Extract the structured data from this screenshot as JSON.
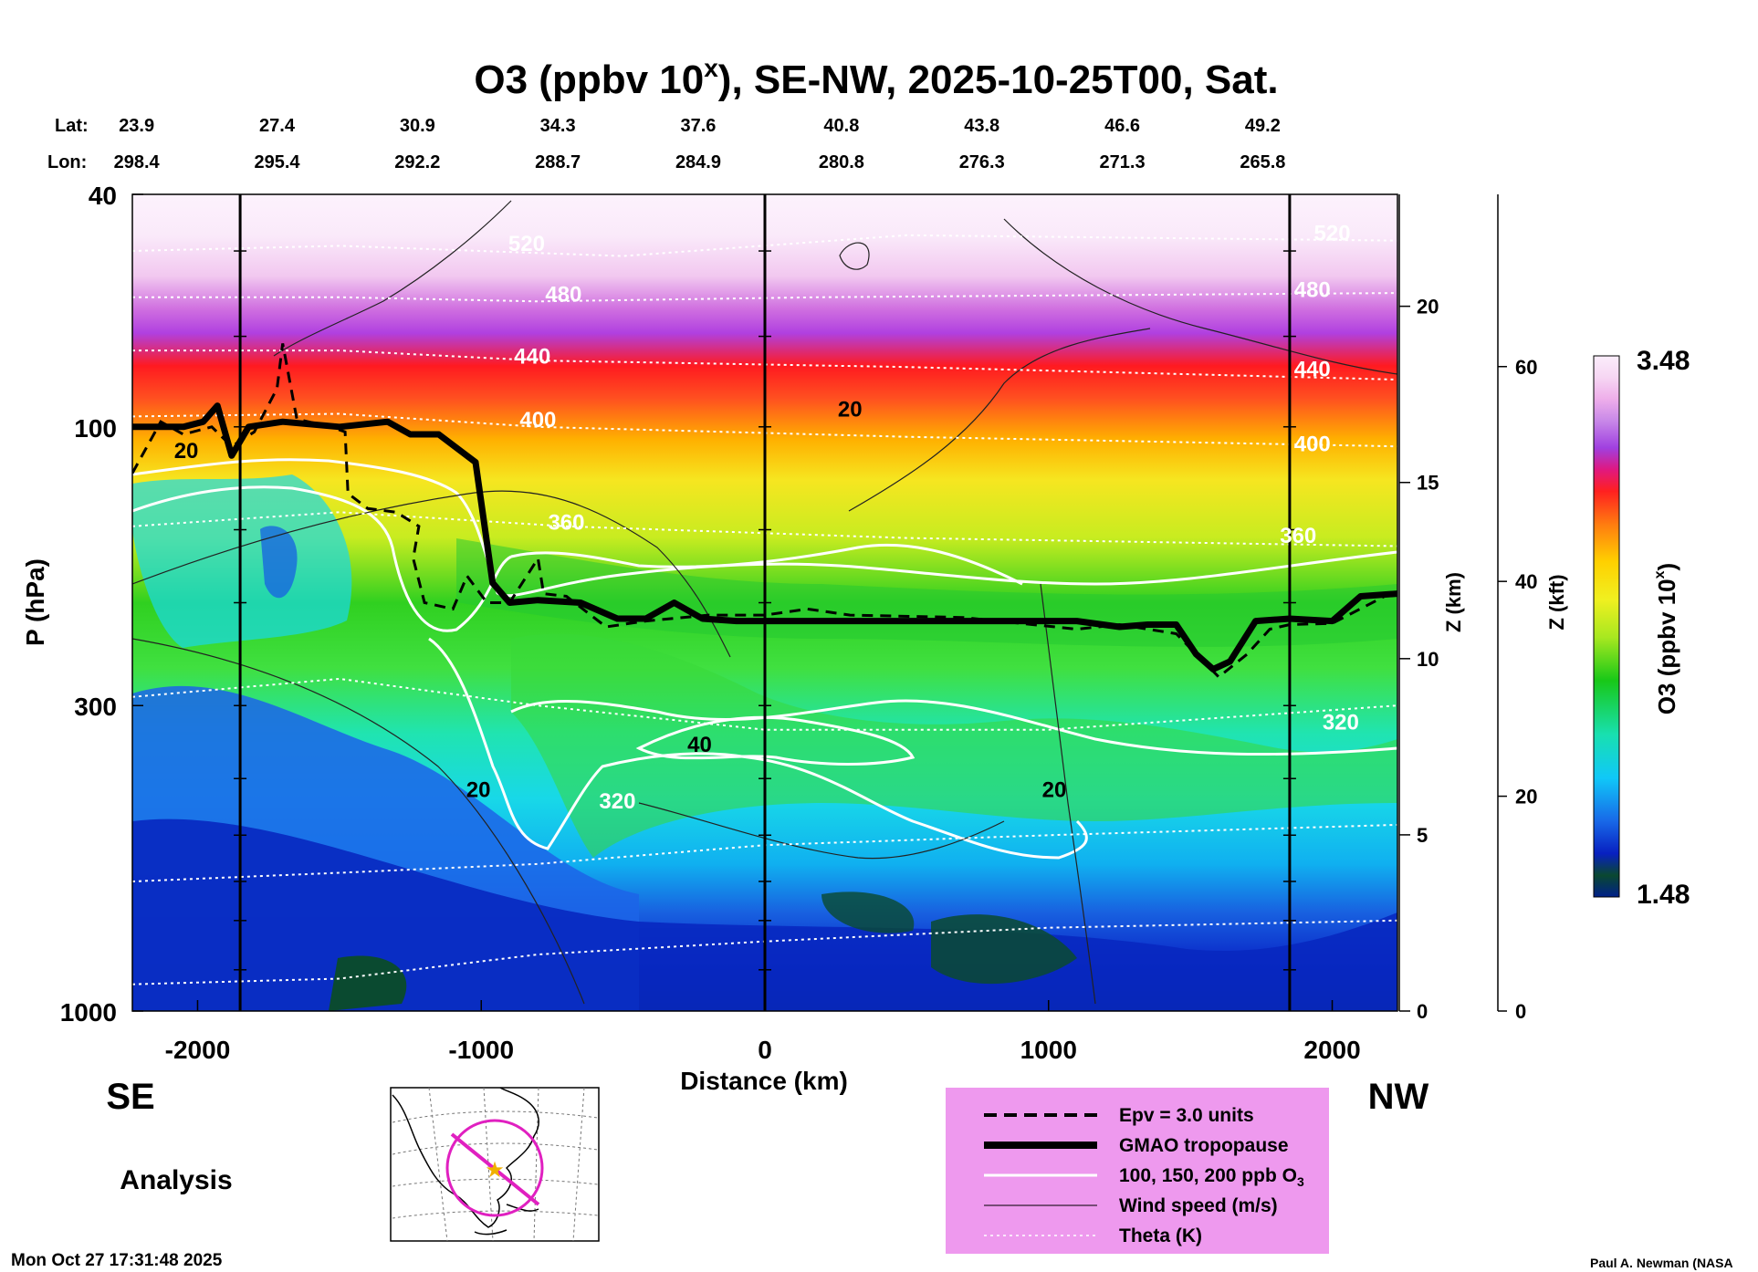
{
  "chart_data": {
    "type": "heatmap",
    "title_main": "O3 (ppbv 10",
    "title_sup": "x",
    "title_rest": "), SE-NW, 2025-10-25T00, Sat.",
    "lat_label": "Lat:",
    "lon_label": "Lon:",
    "latitudes": [
      "23.9",
      "27.4",
      "30.9",
      "34.3",
      "37.6",
      "40.8",
      "43.8",
      "46.6",
      "49.2"
    ],
    "longitudes": [
      "298.4",
      "295.4",
      "292.2",
      "288.7",
      "284.9",
      "280.8",
      "276.3",
      "271.3",
      "265.8"
    ],
    "station_positions_km": [
      -2215,
      -1720,
      -1225,
      -730,
      -235,
      270,
      765,
      1260,
      1755
    ],
    "xlabel": "Distance (km)",
    "xlim": [
      -2230,
      2230
    ],
    "x_ticks": [
      -2000,
      -1000,
      0,
      1000,
      2000
    ],
    "ylabel": "P (hPa)",
    "ylim_hpa": [
      1000,
      40
    ],
    "y_scale": "log",
    "y_ticks": [
      40,
      100,
      300,
      1000
    ],
    "z_km_label": "Z (km)",
    "z_km_ticks": [
      0,
      5,
      10,
      15,
      20
    ],
    "z_kft_label": "Z (kft)",
    "z_kft_ticks": [
      0,
      20,
      40,
      60
    ],
    "vertical_lines_km": [
      -1850,
      0,
      1850
    ],
    "colorbar": {
      "label_main": "O3 (ppbv 10",
      "label_sup": "x",
      "label_rest": ")",
      "max_label": "3.48",
      "min_label": "1.48",
      "range": [
        1.48,
        3.48
      ]
    },
    "theta_labels": [
      {
        "text": "520",
        "x_km": -840,
        "p": 50
      },
      {
        "text": "480",
        "x_km": -710,
        "p": 61
      },
      {
        "text": "440",
        "x_km": -820,
        "p": 78
      },
      {
        "text": "400",
        "x_km": -800,
        "p": 100
      },
      {
        "text": "360",
        "x_km": -700,
        "p": 150
      },
      {
        "text": "320",
        "x_km": -520,
        "p": 450
      },
      {
        "text": "520",
        "x_km": 2000,
        "p": 48
      },
      {
        "text": "480",
        "x_km": 1930,
        "p": 60
      },
      {
        "text": "440",
        "x_km": 1930,
        "p": 82
      },
      {
        "text": "400",
        "x_km": 1930,
        "p": 110
      },
      {
        "text": "360",
        "x_km": 1880,
        "p": 158
      },
      {
        "text": "320",
        "x_km": 2030,
        "p": 330
      }
    ],
    "wind_labels": [
      {
        "text": "20",
        "x_km": -2040,
        "p": 113
      },
      {
        "text": "20",
        "x_km": 300,
        "p": 96
      },
      {
        "text": "40",
        "x_km": -230,
        "p": 360
      },
      {
        "text": "20",
        "x_km": -1010,
        "p": 430
      },
      {
        "text": "20",
        "x_km": 1020,
        "p": 430
      }
    ],
    "tropopause_hpa": [
      [
        -2230,
        100
      ],
      [
        -2050,
        100
      ],
      [
        -1980,
        98
      ],
      [
        -1930,
        92
      ],
      [
        -1880,
        112
      ],
      [
        -1820,
        100
      ],
      [
        -1700,
        98
      ],
      [
        -1500,
        100
      ],
      [
        -1330,
        98
      ],
      [
        -1250,
        103
      ],
      [
        -1150,
        103
      ],
      [
        -1020,
        115
      ],
      [
        -960,
        185
      ],
      [
        -900,
        200
      ],
      [
        -800,
        198
      ],
      [
        -650,
        200
      ],
      [
        -520,
        213
      ],
      [
        -420,
        213
      ],
      [
        -320,
        200
      ],
      [
        -220,
        213
      ],
      [
        -100,
        215
      ],
      [
        300,
        215
      ],
      [
        700,
        215
      ],
      [
        1100,
        215
      ],
      [
        1250,
        220
      ],
      [
        1350,
        218
      ],
      [
        1450,
        218
      ],
      [
        1520,
        245
      ],
      [
        1580,
        260
      ],
      [
        1640,
        252
      ],
      [
        1730,
        215
      ],
      [
        1850,
        213
      ],
      [
        2000,
        215
      ],
      [
        2100,
        195
      ],
      [
        2230,
        193
      ]
    ],
    "epv_hpa": [
      [
        -2230,
        120
      ],
      [
        -2130,
        98
      ],
      [
        -2050,
        103
      ],
      [
        -1950,
        100
      ],
      [
        -1880,
        108
      ],
      [
        -1800,
        102
      ],
      [
        -1720,
        86
      ],
      [
        -1700,
        72
      ],
      [
        -1650,
        97
      ],
      [
        -1530,
        100
      ],
      [
        -1480,
        102
      ],
      [
        -1470,
        130
      ],
      [
        -1400,
        138
      ],
      [
        -1300,
        140
      ],
      [
        -1220,
        148
      ],
      [
        -1240,
        168
      ],
      [
        -1200,
        200
      ],
      [
        -1100,
        205
      ],
      [
        -1050,
        180
      ],
      [
        -980,
        200
      ],
      [
        -900,
        200
      ],
      [
        -800,
        168
      ],
      [
        -780,
        193
      ],
      [
        -700,
        195
      ],
      [
        -560,
        220
      ],
      [
        -420,
        215
      ],
      [
        -200,
        210
      ],
      [
        0,
        210
      ],
      [
        150,
        205
      ],
      [
        300,
        210
      ],
      [
        700,
        212
      ],
      [
        1100,
        222
      ],
      [
        1250,
        218
      ],
      [
        1450,
        226
      ],
      [
        1600,
        268
      ],
      [
        1700,
        245
      ],
      [
        1780,
        222
      ],
      [
        1850,
        218
      ],
      [
        2000,
        217
      ],
      [
        2230,
        190
      ]
    ],
    "legend": [
      {
        "style": "epv",
        "label": "Epv = 3.0 units"
      },
      {
        "style": "tropopause",
        "label": "GMAO tropopause"
      },
      {
        "style": "ozone",
        "label": "100, 150, 200 ppb O",
        "sub": "3"
      },
      {
        "style": "wind",
        "label": "Wind speed (m/s)"
      },
      {
        "style": "theta",
        "label": "Theta (K)"
      }
    ],
    "side_left": "SE",
    "side_right": "NW",
    "analysis_label": "Analysis",
    "timestamp": "Mon Oct 27 17:31:48 2025",
    "credit": "Paul A. Newman (NASA",
    "colors": {
      "legend_bg": "#ee99ee",
      "map_route": "#e020c0",
      "map_center": "#f0b000"
    }
  }
}
